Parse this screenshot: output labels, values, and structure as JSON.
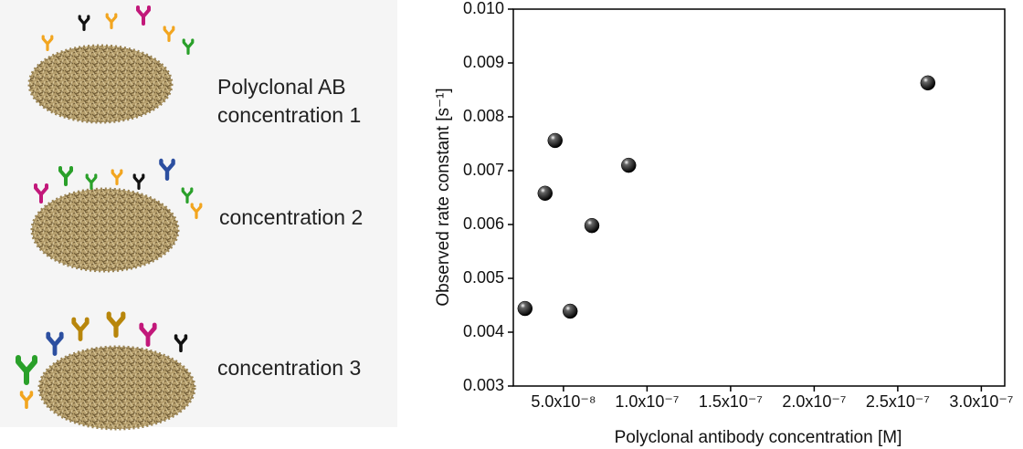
{
  "illustration": {
    "panels": [
      {
        "lines": [
          "Polyclonal AB",
          "concentration 1"
        ]
      },
      {
        "lines": [
          "concentration 2"
        ]
      },
      {
        "lines": [
          "concentration 3"
        ]
      }
    ]
  },
  "chart_data": {
    "type": "scatter",
    "x_label": "Polyclonal antibody concentration [M]",
    "y_label": "Observed rate constant [s⁻¹]",
    "x": [
      2.7e-08,
      3.9e-08,
      4.5e-08,
      5.4e-08,
      6.7e-08,
      8.9e-08,
      2.68e-07
    ],
    "values": [
      0.00444,
      0.00658,
      0.00756,
      0.00439,
      0.00598,
      0.0071,
      0.00863
    ],
    "color": "#000000",
    "xlim": [
      2e-08,
      3.14e-07
    ],
    "ylim": [
      0.003,
      0.01
    ],
    "xticks": [
      {
        "value": 5e-08,
        "label": "5.0x10⁻⁸"
      },
      {
        "value": 1e-07,
        "label": "1.0x10⁻⁷"
      },
      {
        "value": 1.5e-07,
        "label": "1.5x10⁻⁷"
      },
      {
        "value": 2e-07,
        "label": "2.0x10⁻⁷"
      },
      {
        "value": 2.5e-07,
        "label": "2.5x10⁻⁷"
      },
      {
        "value": 3e-07,
        "label": "3.0x10⁻⁷"
      }
    ],
    "yticks": [
      0.003,
      0.004,
      0.005,
      0.006,
      0.007,
      0.008,
      0.009,
      {
        "value": 0.01,
        "label": "0.010"
      }
    ],
    "grid": false
  }
}
